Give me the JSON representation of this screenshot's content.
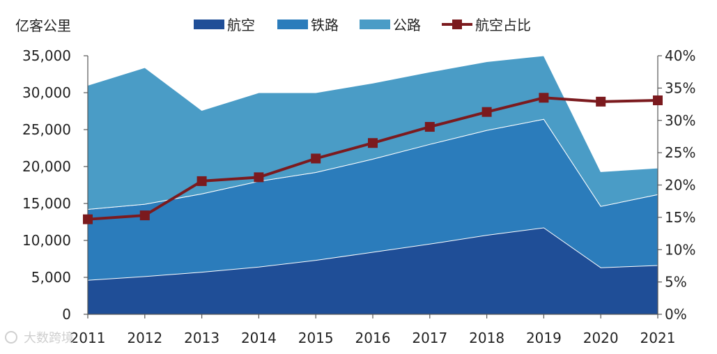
{
  "chart_data": {
    "type": "area",
    "stacked": true,
    "ylabel": "亿客公里",
    "categories": [
      "2011",
      "2012",
      "2013",
      "2014",
      "2015",
      "2016",
      "2017",
      "2018",
      "2019",
      "2020",
      "2021"
    ],
    "series": [
      {
        "name": "航空",
        "type": "area",
        "axis": "left",
        "color": "#1f4e97",
        "values": [
          4600,
          5100,
          5700,
          6400,
          7300,
          8400,
          9500,
          10700,
          11700,
          6300,
          6600
        ]
      },
      {
        "name": "铁路",
        "type": "area",
        "axis": "left",
        "color": "#2b7cbb",
        "values": [
          9600,
          9800,
          10600,
          11600,
          11900,
          12600,
          13500,
          14200,
          14700,
          8300,
          9600
        ]
      },
      {
        "name": "公路",
        "type": "area",
        "axis": "left",
        "color": "#4a9cc6",
        "values": [
          16800,
          18500,
          11300,
          12000,
          10800,
          10300,
          9800,
          9300,
          8600,
          4700,
          3600
        ]
      },
      {
        "name": "航空占比",
        "type": "line",
        "axis": "right",
        "color": "#7b1a1e",
        "values": [
          14.7,
          15.3,
          20.6,
          21.2,
          24.1,
          26.5,
          29.0,
          31.3,
          33.5,
          32.9,
          33.1
        ]
      }
    ],
    "left_axis": {
      "min": 0,
      "max": 35000,
      "step": 5000,
      "tick_labels": [
        "0",
        "5,000",
        "10,000",
        "15,000",
        "20,000",
        "25,000",
        "30,000",
        "35,000"
      ]
    },
    "right_axis": {
      "min": 0,
      "max": 40,
      "step": 5,
      "tick_labels": [
        "0%",
        "5%",
        "10%",
        "15%",
        "20%",
        "25%",
        "30%",
        "35%",
        "40%"
      ]
    },
    "legend_position": "top"
  },
  "watermark": {
    "text": "大数跨境"
  }
}
